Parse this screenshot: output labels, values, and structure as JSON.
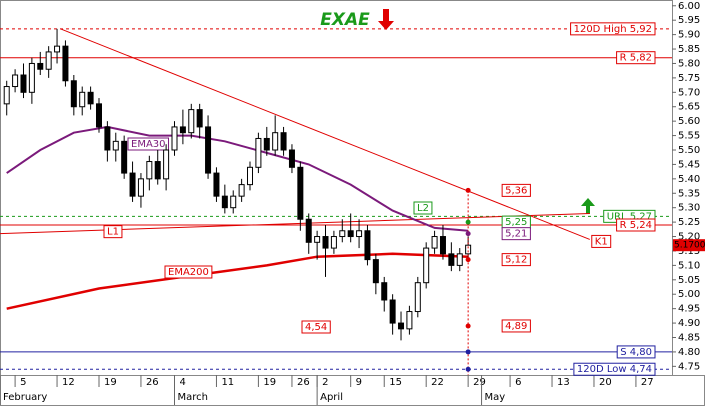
{
  "chart_data": {
    "type": "candlestick",
    "title": "EXAE",
    "x": [
      -1,
      0,
      1,
      2,
      3,
      4,
      5,
      6,
      7,
      8,
      9,
      10,
      11,
      12,
      13,
      14,
      15,
      16,
      17,
      18,
      19,
      20,
      21,
      22,
      23,
      24,
      25,
      26,
      27,
      28,
      29,
      30,
      31,
      32,
      33,
      34,
      35,
      36,
      37,
      38,
      39,
      40,
      41,
      42,
      43,
      44,
      45,
      46,
      47,
      48,
      49,
      50,
      51,
      52,
      53,
      54
    ],
    "open": [
      5.66,
      5.72,
      5.76,
      5.7,
      5.8,
      5.78,
      5.84,
      5.86,
      5.74,
      5.65,
      5.7,
      5.66,
      5.58,
      5.5,
      5.53,
      5.42,
      5.34,
      5.4,
      5.46,
      5.4,
      5.5,
      5.58,
      5.56,
      5.64,
      5.58,
      5.42,
      5.34,
      5.3,
      5.34,
      5.38,
      5.44,
      5.54,
      5.5,
      5.56,
      5.5,
      5.44,
      5.26,
      5.18,
      5.2,
      5.16,
      5.2,
      5.22,
      5.2,
      5.22,
      5.12,
      5.04,
      4.98,
      4.9,
      4.88,
      4.94,
      5.04,
      5.16,
      5.2,
      5.14,
      5.1,
      5.14
    ],
    "high": [
      5.74,
      5.78,
      5.8,
      5.82,
      5.84,
      5.86,
      5.92,
      5.88,
      5.76,
      5.72,
      5.72,
      5.68,
      5.6,
      5.56,
      5.55,
      5.46,
      5.42,
      5.48,
      5.5,
      5.52,
      5.6,
      5.64,
      5.66,
      5.66,
      5.62,
      5.44,
      5.38,
      5.36,
      5.4,
      5.46,
      5.56,
      5.58,
      5.62,
      5.58,
      5.52,
      5.46,
      5.28,
      5.22,
      5.24,
      5.22,
      5.26,
      5.28,
      5.26,
      5.24,
      5.14,
      5.06,
      5.0,
      4.94,
      4.96,
      5.06,
      5.18,
      5.22,
      5.24,
      5.18,
      5.16,
      5.2
    ],
    "low": [
      5.62,
      5.7,
      5.68,
      5.66,
      5.76,
      5.75,
      5.8,
      5.72,
      5.62,
      5.62,
      5.64,
      5.56,
      5.46,
      5.46,
      5.4,
      5.32,
      5.3,
      5.36,
      5.38,
      5.36,
      5.48,
      5.52,
      5.54,
      5.54,
      5.4,
      5.32,
      5.28,
      5.28,
      5.32,
      5.36,
      5.42,
      5.48,
      5.48,
      5.48,
      5.42,
      5.22,
      5.14,
      5.12,
      5.06,
      5.14,
      5.18,
      5.18,
      5.16,
      5.1,
      5.0,
      4.94,
      4.86,
      4.84,
      4.86,
      4.92,
      5.02,
      5.14,
      5.12,
      5.08,
      5.08,
      5.12
    ],
    "close": [
      5.72,
      5.76,
      5.7,
      5.8,
      5.78,
      5.84,
      5.86,
      5.74,
      5.65,
      5.7,
      5.66,
      5.58,
      5.5,
      5.53,
      5.42,
      5.34,
      5.4,
      5.46,
      5.4,
      5.5,
      5.58,
      5.56,
      5.64,
      5.58,
      5.42,
      5.34,
      5.3,
      5.34,
      5.38,
      5.44,
      5.54,
      5.5,
      5.56,
      5.5,
      5.44,
      5.26,
      5.18,
      5.2,
      5.16,
      5.2,
      5.22,
      5.2,
      5.22,
      5.12,
      5.04,
      4.98,
      4.9,
      4.88,
      4.94,
      5.04,
      5.16,
      5.2,
      5.14,
      5.1,
      5.14,
      5.17
    ],
    "last_label": "5.1700",
    "indicators": [
      {
        "name": "EMA30",
        "color": "#7b1a7b",
        "width": 2,
        "x": [
          -1,
          3,
          7,
          11,
          16,
          21,
          25,
          30,
          35,
          40,
          45,
          50,
          54
        ],
        "values": [
          5.42,
          5.5,
          5.56,
          5.58,
          5.55,
          5.55,
          5.53,
          5.49,
          5.45,
          5.38,
          5.29,
          5.23,
          5.22
        ]
      },
      {
        "name": "EMA200",
        "color": "#e00000",
        "width": 2.5,
        "x": [
          -1,
          10,
          20,
          30,
          36,
          45,
          54
        ],
        "values": [
          4.95,
          5.02,
          5.06,
          5.1,
          5.13,
          5.14,
          5.13
        ]
      }
    ],
    "levels": [
      {
        "label": "120D High 5,92",
        "value": 5.92,
        "color": "#e00000",
        "dashed": true
      },
      {
        "label": "R 5,82",
        "value": 5.82,
        "color": "#e00000",
        "dashed": false
      },
      {
        "label": "URL 5,27",
        "value": 5.27,
        "color": "#1a9a1a",
        "dashed": true
      },
      {
        "label": "R 5,24",
        "value": 5.24,
        "color": "#e00000",
        "dashed": false
      },
      {
        "label": "S 4,80",
        "value": 4.8,
        "color": "#2020a0",
        "dashed": false
      },
      {
        "label": "120D Low 4,74",
        "value": 4.74,
        "color": "#2020a0",
        "dashed": true
      }
    ],
    "trendlines": [
      {
        "label": "K1",
        "x": [
          5.4,
          68.5
        ],
        "values": [
          5.92,
          5.19
        ],
        "color": "#e00000"
      },
      {
        "label": "L1",
        "x": [
          -1.8,
          68.5
        ],
        "values": [
          5.21,
          5.28
        ],
        "color": "#e00000"
      }
    ],
    "targets": [
      {
        "label": "5,36",
        "value": 5.36,
        "color": "#e00000"
      },
      {
        "label": "5,25",
        "value": 5.25,
        "color": "#1a9a1a"
      },
      {
        "label": "5,21",
        "value": 5.21,
        "color": "#7b1a7b"
      },
      {
        "label": "5,12",
        "value": 5.12,
        "color": "#e00000"
      },
      {
        "label": "4,89",
        "value": 4.89,
        "color": "#e00000"
      }
    ],
    "notes": [
      "4,54",
      "L2"
    ],
    "xlim": [
      -1.8,
      78.3
    ],
    "ylim": [
      4.72,
      6.02
    ],
    "xticks": [
      {
        "value": 0,
        "label": "5"
      },
      {
        "value": 5,
        "label": "12"
      },
      {
        "value": 10,
        "label": "19"
      },
      {
        "value": 15,
        "label": "26"
      },
      {
        "value": 19,
        "label": "4"
      },
      {
        "value": 24,
        "label": "11"
      },
      {
        "value": 29,
        "label": "19"
      },
      {
        "value": 33,
        "label": "26"
      },
      {
        "value": 36,
        "label": "2"
      },
      {
        "value": 40,
        "label": "9"
      },
      {
        "value": 44,
        "label": "15"
      },
      {
        "value": 49,
        "label": "22"
      },
      {
        "value": 54,
        "label": "29"
      },
      {
        "value": 59,
        "label": "6"
      },
      {
        "value": 64,
        "label": "13"
      },
      {
        "value": 69,
        "label": "20"
      },
      {
        "value": 74,
        "label": "27"
      }
    ],
    "months": [
      {
        "value": -1.8,
        "label": "February"
      },
      {
        "value": 19,
        "label": "March"
      },
      {
        "value": 36,
        "label": "April"
      },
      {
        "value": 55.6,
        "label": "May"
      }
    ],
    "yticks": [
      {
        "value": 4.75,
        "label": "4.75"
      },
      {
        "value": 4.8,
        "label": "4.80"
      },
      {
        "value": 4.85,
        "label": "4.85"
      },
      {
        "value": 4.9,
        "label": "4.90"
      },
      {
        "value": 4.95,
        "label": "4.95"
      },
      {
        "value": 5.0,
        "label": "5.00"
      },
      {
        "value": 5.05,
        "label": "5.05"
      },
      {
        "value": 5.1,
        "label": "5.10"
      },
      {
        "value": 5.15,
        "label": "5.15"
      },
      {
        "value": 5.2,
        "label": "5.20"
      },
      {
        "value": 5.25,
        "label": "5.25"
      },
      {
        "value": 5.3,
        "label": "5.30"
      },
      {
        "value": 5.35,
        "label": "5.35"
      },
      {
        "value": 5.4,
        "label": "5.40"
      },
      {
        "value": 5.45,
        "label": "5.45"
      },
      {
        "value": 5.5,
        "label": "5.50"
      },
      {
        "value": 5.55,
        "label": "5.55"
      },
      {
        "value": 5.6,
        "label": "5.60"
      },
      {
        "value": 5.65,
        "label": "5.65"
      },
      {
        "value": 5.7,
        "label": "5.70"
      },
      {
        "value": 5.75,
        "label": "5.75"
      },
      {
        "value": 5.8,
        "label": "5.80"
      },
      {
        "value": 5.85,
        "label": "5.85"
      },
      {
        "value": 5.9,
        "label": "5.90"
      },
      {
        "value": 5.95,
        "label": "5.95"
      },
      {
        "value": 6.0,
        "label": "6.00"
      }
    ]
  }
}
